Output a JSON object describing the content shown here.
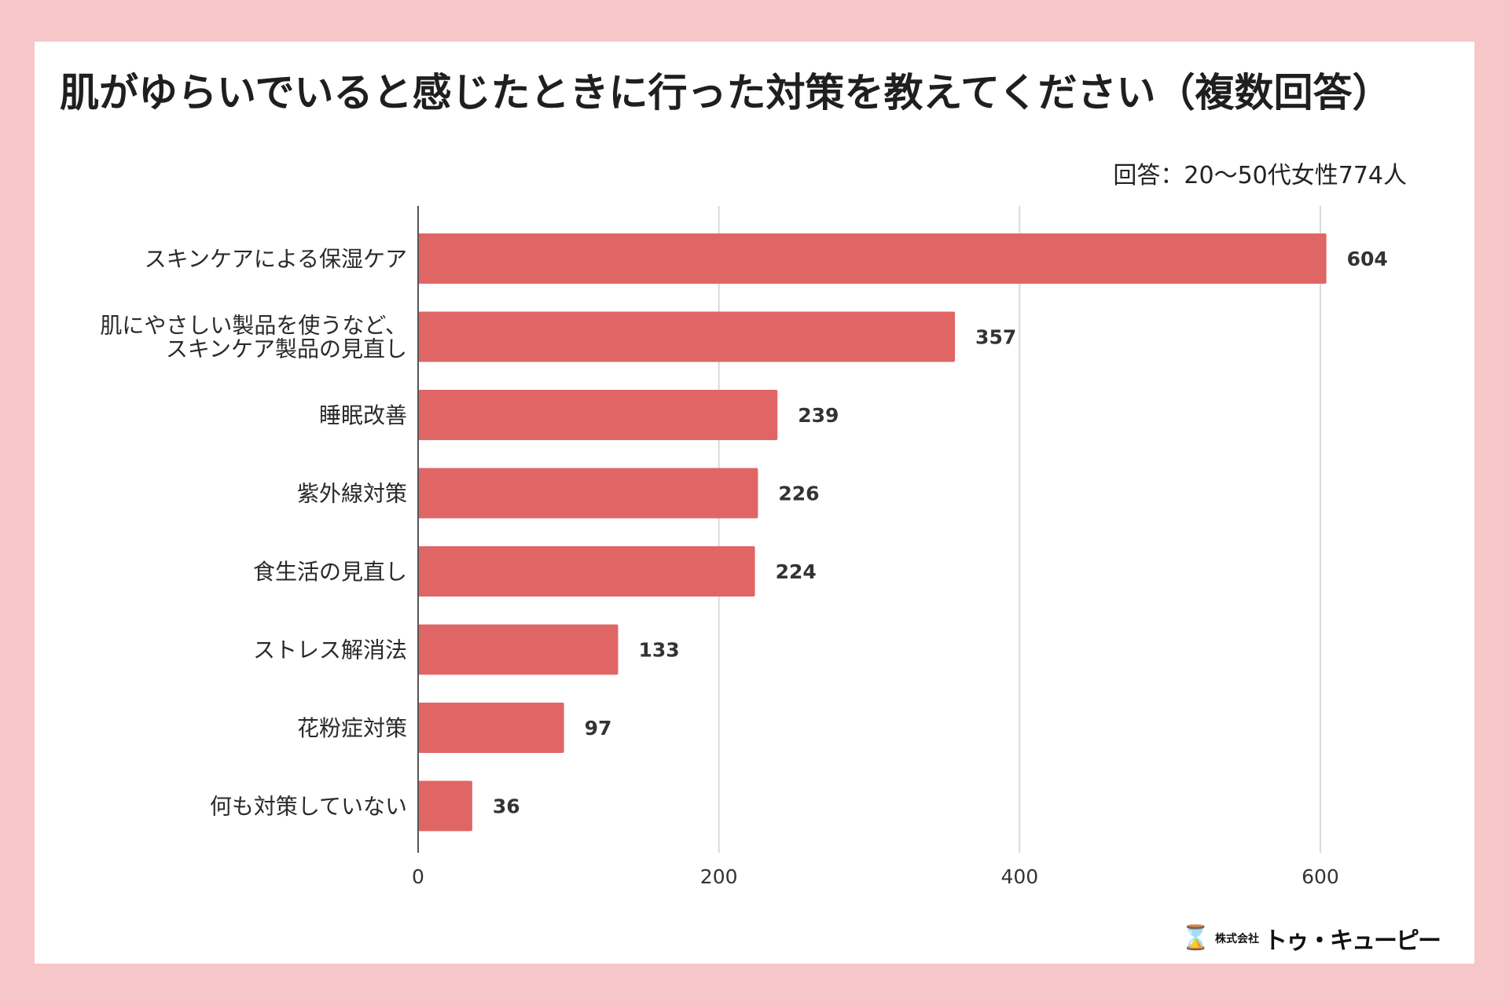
{
  "chart_data": {
    "type": "bar",
    "orientation": "horizontal",
    "title": "肌がゆらいでいると感じたときに行った対策を教えてください（複数回答）",
    "subtitle": "回答：20〜50代女性774人",
    "categories": [
      [
        "スキンケアによる保湿ケア"
      ],
      [
        "肌にやさしい製品を使うなど、",
        "スキンケア製品の見直し"
      ],
      [
        "睡眠改善"
      ],
      [
        "紫外線対策"
      ],
      [
        "食生活の見直し"
      ],
      [
        "ストレス解消法"
      ],
      [
        "花粉症対策"
      ],
      [
        "何も対策していない"
      ]
    ],
    "values": [
      604,
      357,
      239,
      226,
      224,
      133,
      97,
      36
    ],
    "xlim": [
      0,
      650
    ],
    "xticks": [
      0,
      200,
      400,
      600
    ],
    "grid": true,
    "bar_color": "#e06666",
    "grid_color": "#d9d9d9",
    "axis_color": "#555555"
  },
  "footer": {
    "logo_icon": "⌛",
    "logo_small": "株式会社",
    "logo_big": "トゥ・キューピー"
  }
}
